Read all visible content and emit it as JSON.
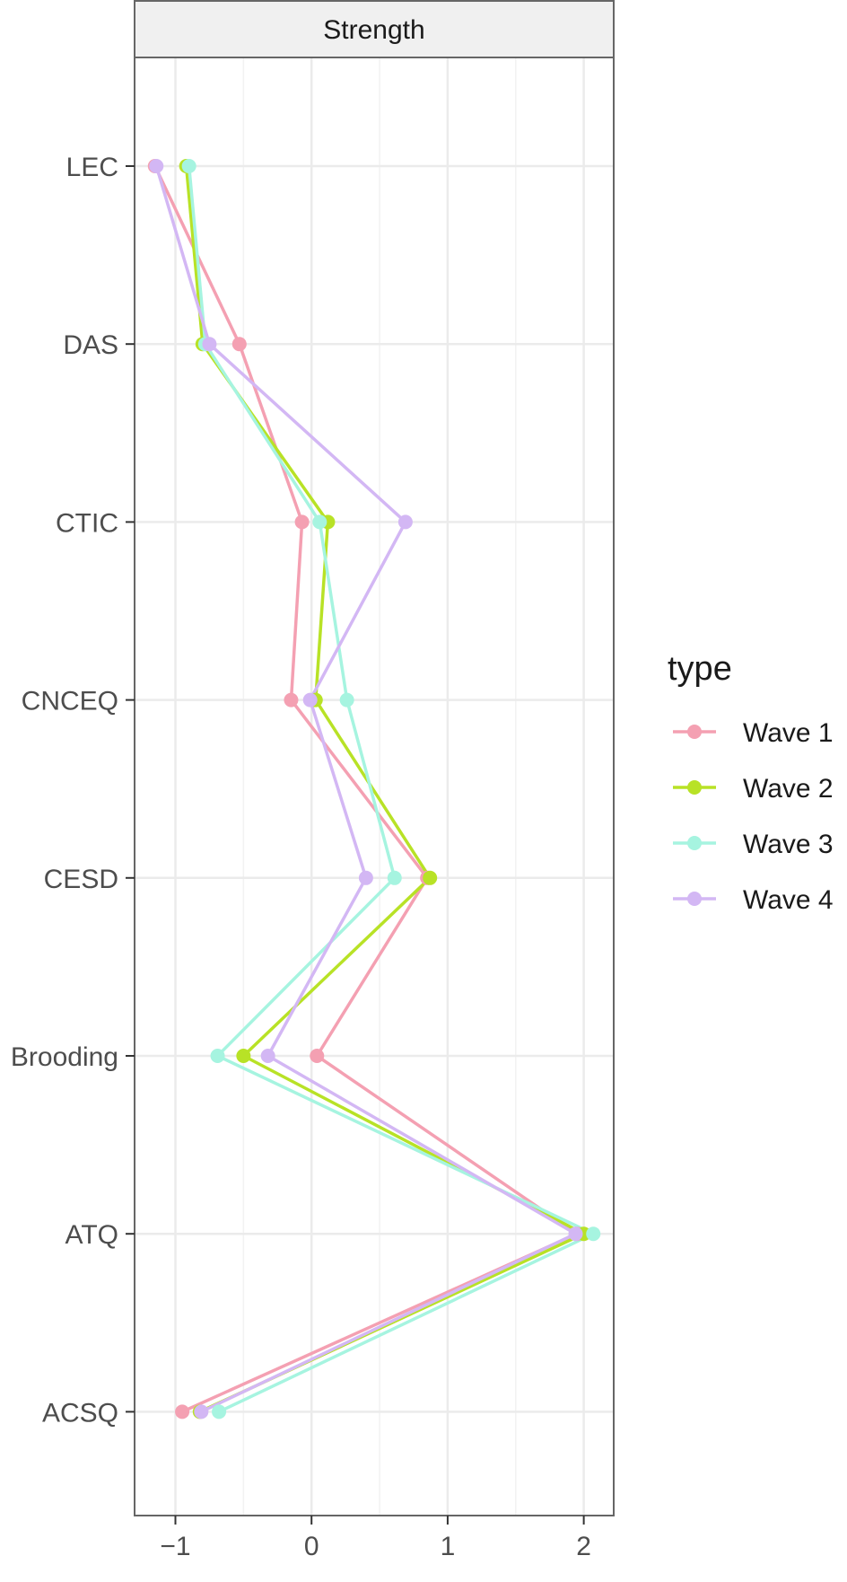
{
  "chart_data": {
    "type": "line",
    "facet_label": "Strength",
    "orientation": "horizontal",
    "categories": [
      "LEC",
      "DAS",
      "CTIC",
      "CNCEQ",
      "CESD",
      "Brooding",
      "ATQ",
      "ACSQ"
    ],
    "x_ticks": [
      -1,
      0,
      1,
      2
    ],
    "x_tick_labels": [
      "−1",
      "0",
      "1",
      "2"
    ],
    "xlim": [
      -1.3,
      2.22
    ],
    "grid": true,
    "legend": {
      "title": "type",
      "position": "right"
    },
    "series": [
      {
        "name": "Wave 1",
        "color": "#f4a0b2",
        "values": [
          -1.15,
          -0.53,
          -0.07,
          -0.15,
          0.85,
          0.04,
          1.95,
          -0.95
        ]
      },
      {
        "name": "Wave 2",
        "color": "#b8e226",
        "values": [
          -0.92,
          -0.8,
          0.12,
          0.03,
          0.87,
          -0.5,
          2.0,
          -0.82
        ]
      },
      {
        "name": "Wave 3",
        "color": "#a6f4e0",
        "values": [
          -0.9,
          -0.78,
          0.06,
          0.26,
          0.61,
          -0.69,
          2.07,
          -0.68
        ]
      },
      {
        "name": "Wave 4",
        "color": "#d3b7f4",
        "values": [
          -1.14,
          -0.75,
          0.69,
          -0.01,
          0.4,
          -0.32,
          1.94,
          -0.81
        ]
      }
    ]
  }
}
